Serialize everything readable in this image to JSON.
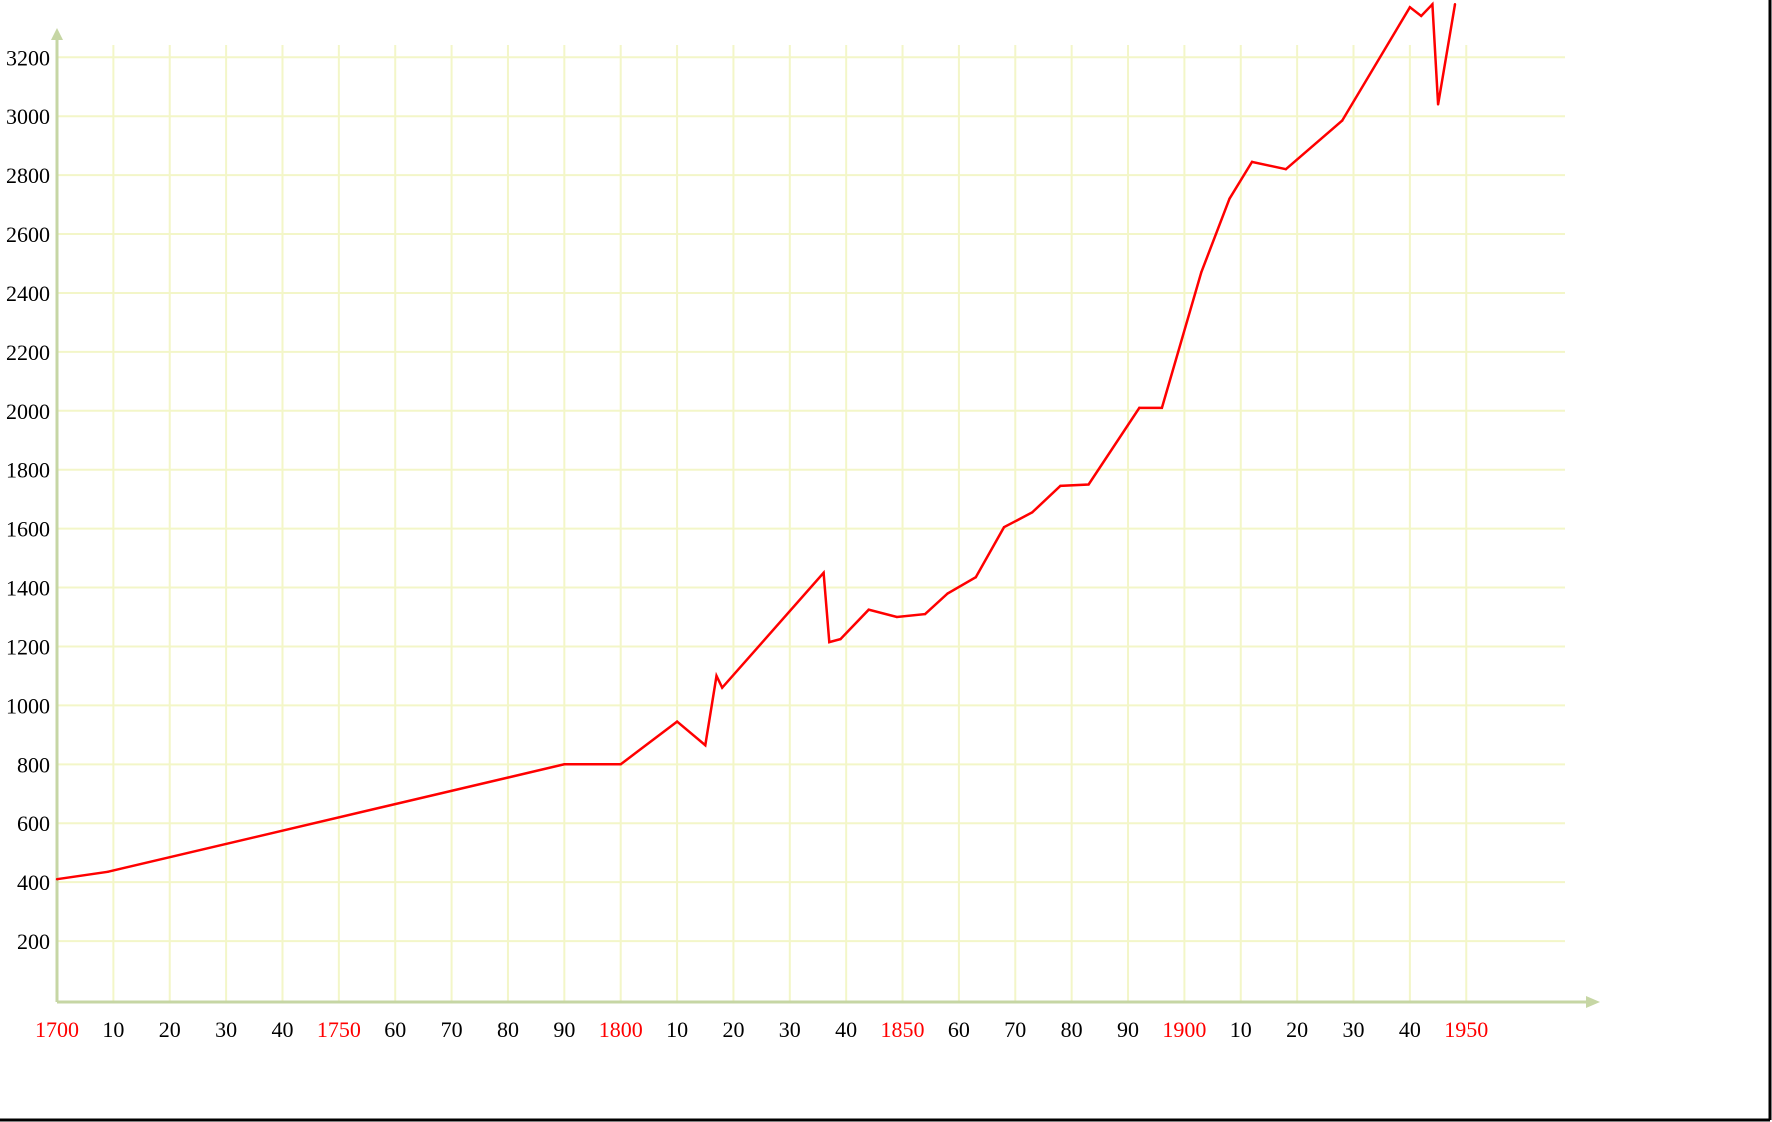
{
  "chart_data": {
    "type": "line",
    "title": "",
    "xlabel": "",
    "ylabel": "",
    "xlim": [
      1700,
      1958
    ],
    "ylim": [
      0,
      3300
    ],
    "grid": true,
    "y_ticks": [
      200,
      400,
      600,
      800,
      1000,
      1200,
      1400,
      1600,
      1800,
      2000,
      2200,
      2400,
      2600,
      2800,
      3000,
      3200
    ],
    "x_ticks": [
      {
        "year": 1700,
        "label": "1700",
        "highlight": true
      },
      {
        "year": 1710,
        "label": "10",
        "highlight": false
      },
      {
        "year": 1720,
        "label": "20",
        "highlight": false
      },
      {
        "year": 1730,
        "label": "30",
        "highlight": false
      },
      {
        "year": 1740,
        "label": "40",
        "highlight": false
      },
      {
        "year": 1750,
        "label": "1750",
        "highlight": true
      },
      {
        "year": 1760,
        "label": "60",
        "highlight": false
      },
      {
        "year": 1770,
        "label": "70",
        "highlight": false
      },
      {
        "year": 1780,
        "label": "80",
        "highlight": false
      },
      {
        "year": 1790,
        "label": "90",
        "highlight": false
      },
      {
        "year": 1800,
        "label": "1800",
        "highlight": true
      },
      {
        "year": 1810,
        "label": "10",
        "highlight": false
      },
      {
        "year": 1820,
        "label": "20",
        "highlight": false
      },
      {
        "year": 1830,
        "label": "30",
        "highlight": false
      },
      {
        "year": 1840,
        "label": "40",
        "highlight": false
      },
      {
        "year": 1850,
        "label": "1850",
        "highlight": true
      },
      {
        "year": 1860,
        "label": "60",
        "highlight": false
      },
      {
        "year": 1870,
        "label": "70",
        "highlight": false
      },
      {
        "year": 1880,
        "label": "80",
        "highlight": false
      },
      {
        "year": 1890,
        "label": "90",
        "highlight": false
      },
      {
        "year": 1900,
        "label": "1900",
        "highlight": true
      },
      {
        "year": 1910,
        "label": "10",
        "highlight": false
      },
      {
        "year": 1920,
        "label": "20",
        "highlight": false
      },
      {
        "year": 1930,
        "label": "30",
        "highlight": false
      },
      {
        "year": 1940,
        "label": "40",
        "highlight": false
      },
      {
        "year": 1950,
        "label": "1950",
        "highlight": true
      }
    ],
    "series": [
      {
        "color": "#ff0000",
        "points": [
          [
            1700,
            410
          ],
          [
            1709,
            435
          ],
          [
            1790,
            800
          ],
          [
            1800,
            800
          ],
          [
            1810,
            945
          ],
          [
            1815,
            865
          ],
          [
            1817,
            1100
          ],
          [
            1818,
            1060
          ],
          [
            1836,
            1450
          ],
          [
            1837,
            1215
          ],
          [
            1839,
            1225
          ],
          [
            1844,
            1325
          ],
          [
            1849,
            1300
          ],
          [
            1854,
            1310
          ],
          [
            1858,
            1380
          ],
          [
            1863,
            1435
          ],
          [
            1868,
            1605
          ],
          [
            1873,
            1655
          ],
          [
            1878,
            1745
          ],
          [
            1883,
            1750
          ],
          [
            1892,
            2010
          ],
          [
            1896,
            2010
          ],
          [
            1903,
            2470
          ],
          [
            1908,
            2720
          ],
          [
            1912,
            2845
          ],
          [
            1918,
            2820
          ],
          [
            1928,
            2985
          ],
          [
            1940,
            3370
          ],
          [
            1942,
            3340
          ],
          [
            1944,
            3380
          ],
          [
            1945,
            3040
          ],
          [
            1948,
            3380
          ]
        ]
      }
    ],
    "colors": {
      "axis": "#c6d6a4",
      "grid": "#f3f6c8",
      "line": "#ff0000",
      "highlight_label": "#ff0000",
      "label": "#000000"
    }
  }
}
